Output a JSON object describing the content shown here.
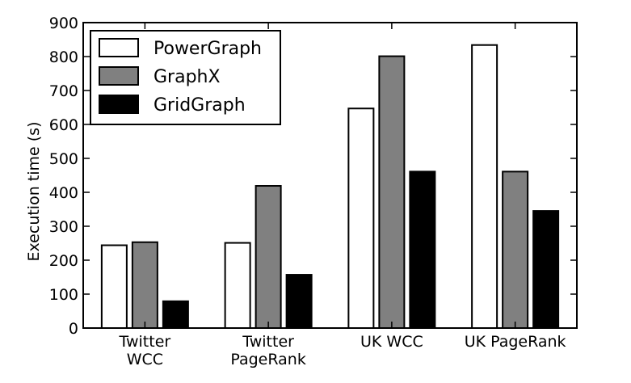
{
  "chart_data": {
    "type": "bar",
    "categories": [
      [
        "Twitter",
        "WCC"
      ],
      [
        "Twitter",
        "PageRank"
      ],
      [
        "UK WCC"
      ],
      [
        "UK PageRank"
      ]
    ],
    "series": [
      {
        "name": "PowerGraph",
        "color": "#ffffff",
        "values": [
          244,
          251,
          647,
          834
        ]
      },
      {
        "name": "GraphX",
        "color": "#808080",
        "values": [
          253,
          419,
          801,
          461
        ]
      },
      {
        "name": "GridGraph",
        "color": "#000000",
        "values": [
          79,
          157,
          461,
          345
        ]
      }
    ],
    "xlabel": "",
    "ylabel": "Execution time (s)",
    "ylim": [
      0,
      900
    ],
    "yticks": [
      0,
      100,
      200,
      300,
      400,
      500,
      600,
      700,
      800,
      900
    ],
    "legend_position": "top-left",
    "grid": false
  }
}
